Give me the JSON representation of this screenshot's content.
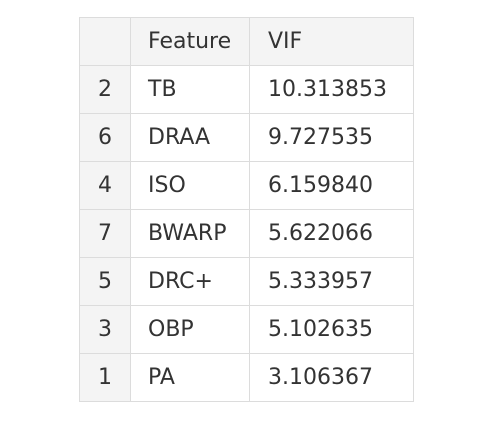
{
  "table": {
    "headers": {
      "index": "",
      "feature": "Feature",
      "vif": "VIF"
    },
    "rows": [
      {
        "index": "2",
        "feature": "TB",
        "vif": "10.313853"
      },
      {
        "index": "6",
        "feature": "DRAA",
        "vif": "9.727535"
      },
      {
        "index": "4",
        "feature": "ISO",
        "vif": "6.159840"
      },
      {
        "index": "7",
        "feature": "BWARP",
        "vif": "5.622066"
      },
      {
        "index": "5",
        "feature": "DRC+",
        "vif": "5.333957"
      },
      {
        "index": "3",
        "feature": "OBP",
        "vif": "5.102635"
      },
      {
        "index": "1",
        "feature": "PA",
        "vif": "3.106367"
      }
    ]
  }
}
